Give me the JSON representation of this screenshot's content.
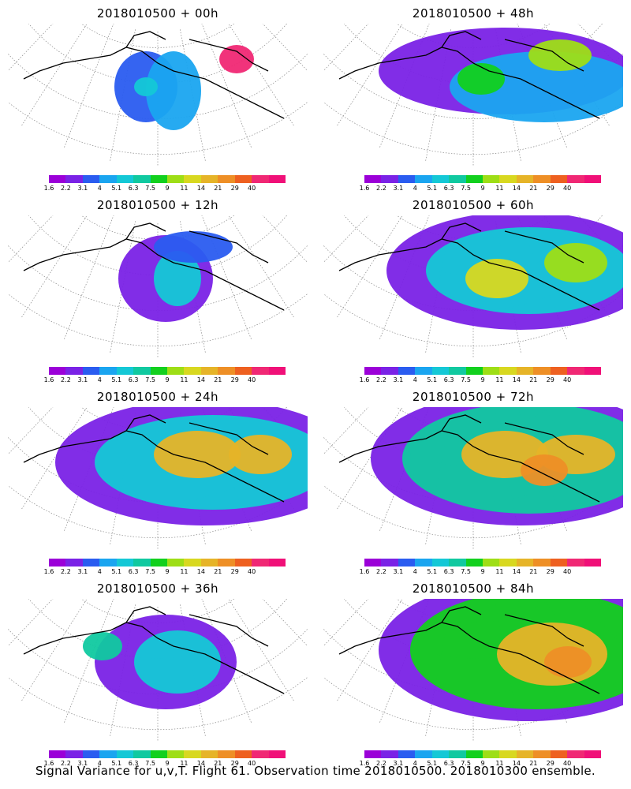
{
  "panels": [
    {
      "title": "2018010500  + 00h"
    },
    {
      "title": "2018010500  + 48h"
    },
    {
      "title": "2018010500  + 12h"
    },
    {
      "title": "2018010500  + 60h"
    },
    {
      "title": "2018010500  + 24h"
    },
    {
      "title": "2018010500  + 72h"
    },
    {
      "title": "2018010500  + 36h"
    },
    {
      "title": "2018010500  + 84h"
    }
  ],
  "colorbar": {
    "colors": [
      "#9b00d8",
      "#7a22e6",
      "#2a5cf0",
      "#1aa5f0",
      "#14c8d6",
      "#10c9a0",
      "#12d01e",
      "#9ede16",
      "#d8d820",
      "#e6b428",
      "#ee8f26",
      "#ee6020",
      "#f02874",
      "#f01078"
    ],
    "labels": [
      "1.6",
      "2.2",
      "3.1",
      "4",
      "5.1",
      "6.3",
      "7.5",
      "9",
      "11",
      "14",
      "21",
      "29",
      "40"
    ]
  },
  "footer": "Signal Variance for u,v,T. Flight 61. Observation time 2018010500. 2018010300 ensemble."
}
